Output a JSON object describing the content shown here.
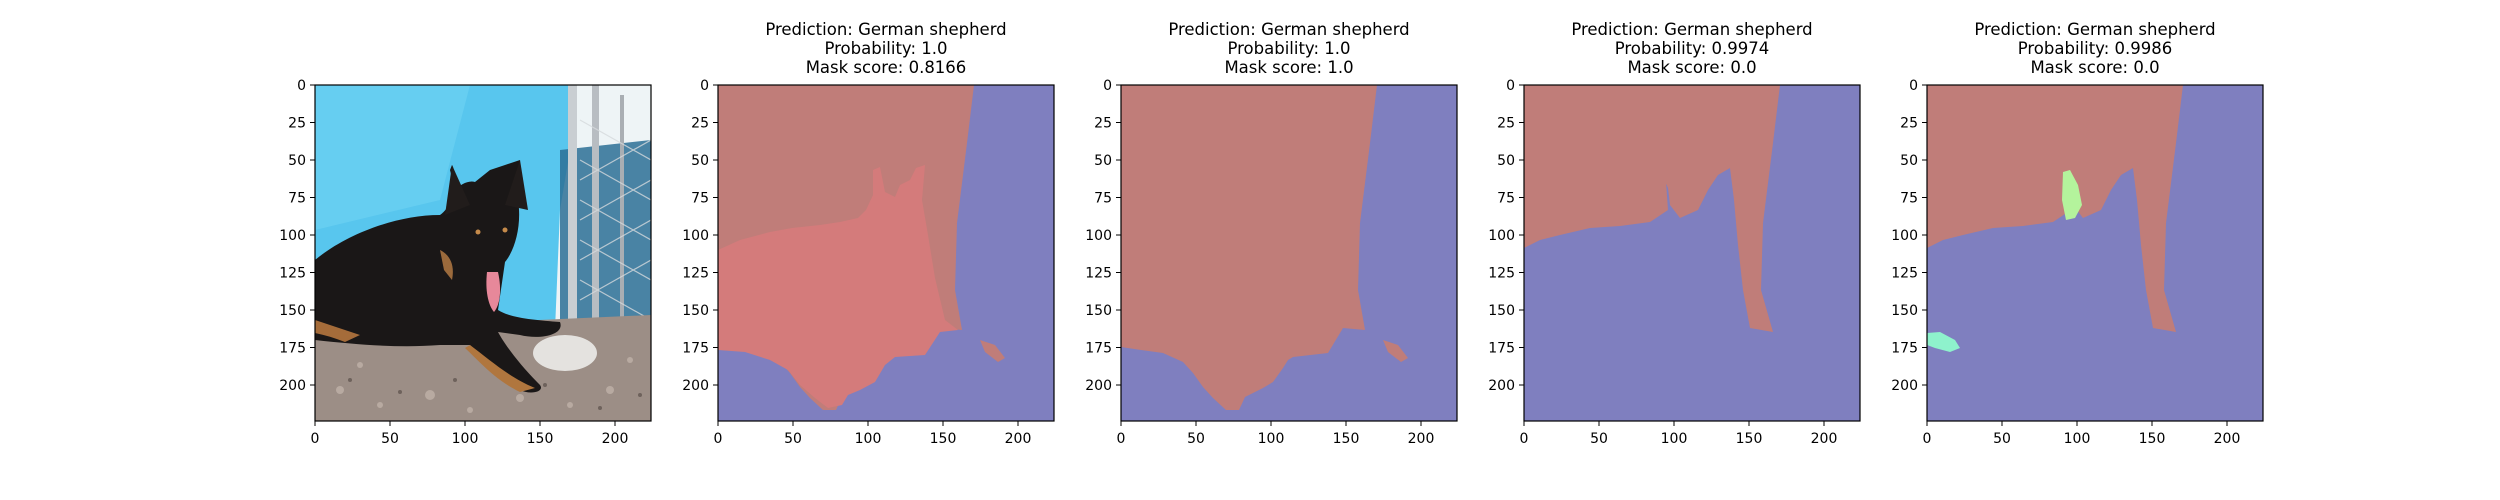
{
  "chart_data": [
    {
      "type": "image",
      "title": [],
      "x_ticks": [
        0,
        50,
        100,
        150,
        200
      ],
      "y_ticks": [
        0,
        25,
        50,
        75,
        100,
        125,
        150,
        175,
        200
      ],
      "xlim": [
        0,
        224
      ],
      "ylim": [
        224,
        0
      ],
      "content": "photo of a black German shepherd lying on gravel in front of a blue tarp and chain-link fence"
    },
    {
      "type": "segmentation",
      "title": [
        "Prediction: German shepherd",
        "Probability: 1.0",
        "Mask score: 0.8166"
      ],
      "x_ticks": [
        0,
        50,
        100,
        150,
        200
      ],
      "y_ticks": [
        0,
        25,
        50,
        75,
        100,
        125,
        150,
        175,
        200
      ],
      "xlim": [
        0,
        224
      ],
      "ylim": [
        224,
        0
      ]
    },
    {
      "type": "segmentation",
      "title": [
        "Prediction: German shepherd",
        "Probability: 1.0",
        "Mask score: 1.0"
      ],
      "x_ticks": [
        0,
        50,
        100,
        150,
        200
      ],
      "y_ticks": [
        0,
        25,
        50,
        75,
        100,
        125,
        150,
        175,
        200
      ],
      "xlim": [
        0,
        224
      ],
      "ylim": [
        224,
        0
      ]
    },
    {
      "type": "segmentation",
      "title": [
        "Prediction: German shepherd",
        "Probability: 0.9974",
        "Mask score: 0.0"
      ],
      "x_ticks": [
        0,
        50,
        100,
        150,
        200
      ],
      "y_ticks": [
        0,
        25,
        50,
        75,
        100,
        125,
        150,
        175,
        200
      ],
      "xlim": [
        0,
        224
      ],
      "ylim": [
        224,
        0
      ]
    },
    {
      "type": "segmentation",
      "title": [
        "Prediction: German shepherd",
        "Probability: 0.9986",
        "Mask score: 0.0"
      ],
      "x_ticks": [
        0,
        50,
        100,
        150,
        200
      ],
      "y_ticks": [
        0,
        25,
        50,
        75,
        100,
        125,
        150,
        175,
        200
      ],
      "xlim": [
        0,
        224
      ],
      "ylim": [
        224,
        0
      ]
    }
  ],
  "colors": {
    "background_region": "#c07d79",
    "dog_region": "#d47b7b",
    "ground_region": "#7f7fbf",
    "artifact_green": "#b4f39c",
    "artifact_mint": "#8ef2cc",
    "tarp_blue": "#58c6ee"
  }
}
